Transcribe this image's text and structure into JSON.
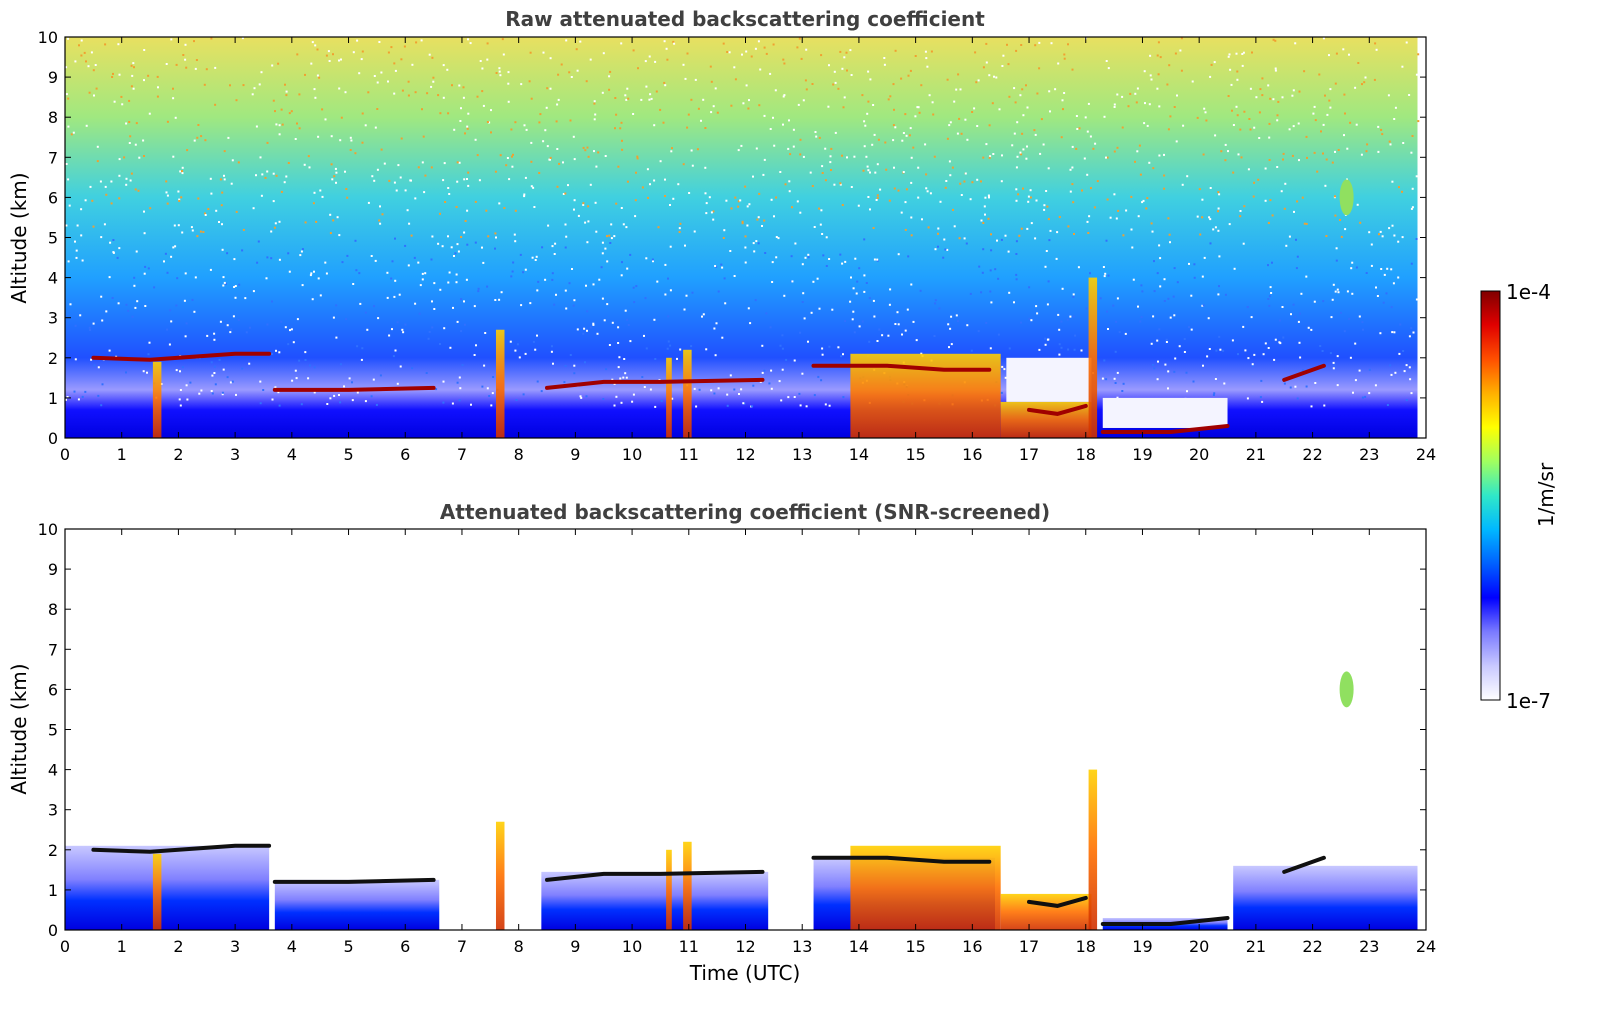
{
  "figure": {
    "colorbar": {
      "label": "1/m/sr",
      "min_label": "1e-7",
      "max_label": "1e-4",
      "scale": "log",
      "colormap": [
        "#ffffff",
        "#c9c9ff",
        "#7a7aff",
        "#0000ff",
        "#0060ff",
        "#00b8ff",
        "#30e8c8",
        "#a0ff60",
        "#ffff00",
        "#ffb000",
        "#ff5000",
        "#e00000",
        "#800000"
      ]
    }
  },
  "chart_data": [
    {
      "type": "heatmap",
      "title": "Raw attenuated backscattering coefficient",
      "xlabel": "",
      "ylabel": "Altitude (km)",
      "xlim": [
        0,
        24
      ],
      "ylim": [
        0,
        10
      ],
      "xticks": [
        "0",
        "1",
        "2",
        "3",
        "4",
        "5",
        "6",
        "7",
        "8",
        "9",
        "10",
        "11",
        "12",
        "13",
        "14",
        "15",
        "16",
        "17",
        "18",
        "19",
        "20",
        "21",
        "22",
        "23",
        "24"
      ],
      "yticks": [
        "0",
        "1",
        "2",
        "3",
        "4",
        "5",
        "6",
        "7",
        "8",
        "9",
        "10"
      ],
      "data_end_hour": 23.85,
      "features": [
        {
          "kind": "cloud_base",
          "points": [
            [
              0.5,
              2.0
            ],
            [
              1.5,
              1.95
            ],
            [
              2.5,
              2.05
            ],
            [
              3.0,
              2.1
            ],
            [
              3.6,
              2.1
            ]
          ]
        },
        {
          "kind": "cloud_base",
          "points": [
            [
              3.7,
              1.2
            ],
            [
              5.0,
              1.2
            ],
            [
              6.5,
              1.25
            ]
          ]
        },
        {
          "kind": "cloud_base",
          "points": [
            [
              8.5,
              1.25
            ],
            [
              9.5,
              1.4
            ],
            [
              10.5,
              1.4
            ],
            [
              12.3,
              1.45
            ]
          ]
        },
        {
          "kind": "cloud_base",
          "points": [
            [
              13.2,
              1.8
            ],
            [
              14.5,
              1.8
            ],
            [
              15.5,
              1.7
            ],
            [
              16.3,
              1.7
            ]
          ]
        },
        {
          "kind": "cloud_base",
          "points": [
            [
              17.0,
              0.7
            ],
            [
              17.5,
              0.6
            ],
            [
              18.0,
              0.8
            ]
          ]
        },
        {
          "kind": "cloud_base",
          "points": [
            [
              18.3,
              0.15
            ],
            [
              19.5,
              0.15
            ],
            [
              20.5,
              0.3
            ]
          ]
        },
        {
          "kind": "cloud_base",
          "points": [
            [
              21.5,
              1.45
            ],
            [
              22.2,
              1.8
            ]
          ]
        },
        {
          "kind": "high_cloud",
          "points": [
            [
              22.6,
              6.0
            ]
          ]
        }
      ]
    },
    {
      "type": "heatmap",
      "title": "Attenuated backscattering coefficient (SNR-screened)",
      "xlabel": "Time (UTC)",
      "ylabel": "Altitude (km)",
      "xlim": [
        0,
        24
      ],
      "ylim": [
        0,
        10
      ],
      "xticks": [
        "0",
        "1",
        "2",
        "3",
        "4",
        "5",
        "6",
        "7",
        "8",
        "9",
        "10",
        "11",
        "12",
        "13",
        "14",
        "15",
        "16",
        "17",
        "18",
        "19",
        "20",
        "21",
        "22",
        "23",
        "24"
      ],
      "yticks": [
        "0",
        "1",
        "2",
        "3",
        "4",
        "5",
        "6",
        "7",
        "8",
        "9",
        "10"
      ],
      "data_end_hour": 23.85
    }
  ]
}
